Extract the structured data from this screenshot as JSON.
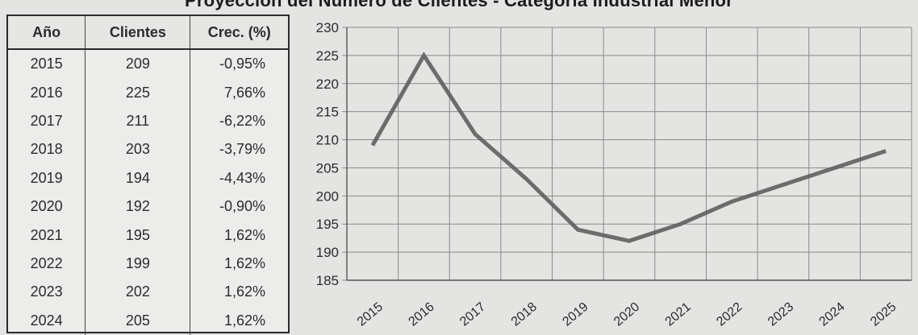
{
  "title": "Proyección del Número de Clientes - Categoría Industrial Menor",
  "table": {
    "headers": [
      "Año",
      "Clientes",
      "Crec. (%)"
    ],
    "rows": [
      [
        "2015",
        "209",
        "-0,95%"
      ],
      [
        "2016",
        "225",
        "7,66%"
      ],
      [
        "2017",
        "211",
        "-6,22%"
      ],
      [
        "2018",
        "203",
        "-3,79%"
      ],
      [
        "2019",
        "194",
        "-4,43%"
      ],
      [
        "2020",
        "192",
        "-0,90%"
      ],
      [
        "2021",
        "195",
        "1,62%"
      ],
      [
        "2022",
        "199",
        "1,62%"
      ],
      [
        "2023",
        "202",
        "1,62%"
      ],
      [
        "2024",
        "205",
        "1,62%"
      ]
    ]
  },
  "chart_data": {
    "type": "line",
    "title": "Proyección del Número de Clientes - Categoría Industrial Menor",
    "xlabel": "",
    "ylabel": "",
    "categories": [
      "2015",
      "2016",
      "2017",
      "2018",
      "2019",
      "2020",
      "2021",
      "2022",
      "2023",
      "2024",
      "2025"
    ],
    "series": [
      {
        "values": [
          209,
          225,
          211,
          203,
          194,
          192,
          195,
          199,
          202,
          205,
          208
        ]
      }
    ],
    "ylim": [
      185,
      230
    ],
    "yticks": [
      185,
      190,
      195,
      200,
      205,
      210,
      215,
      220,
      225,
      230
    ],
    "grid": true,
    "line_color": "#5e5e5e",
    "grid_color": "#8a8a8a"
  }
}
